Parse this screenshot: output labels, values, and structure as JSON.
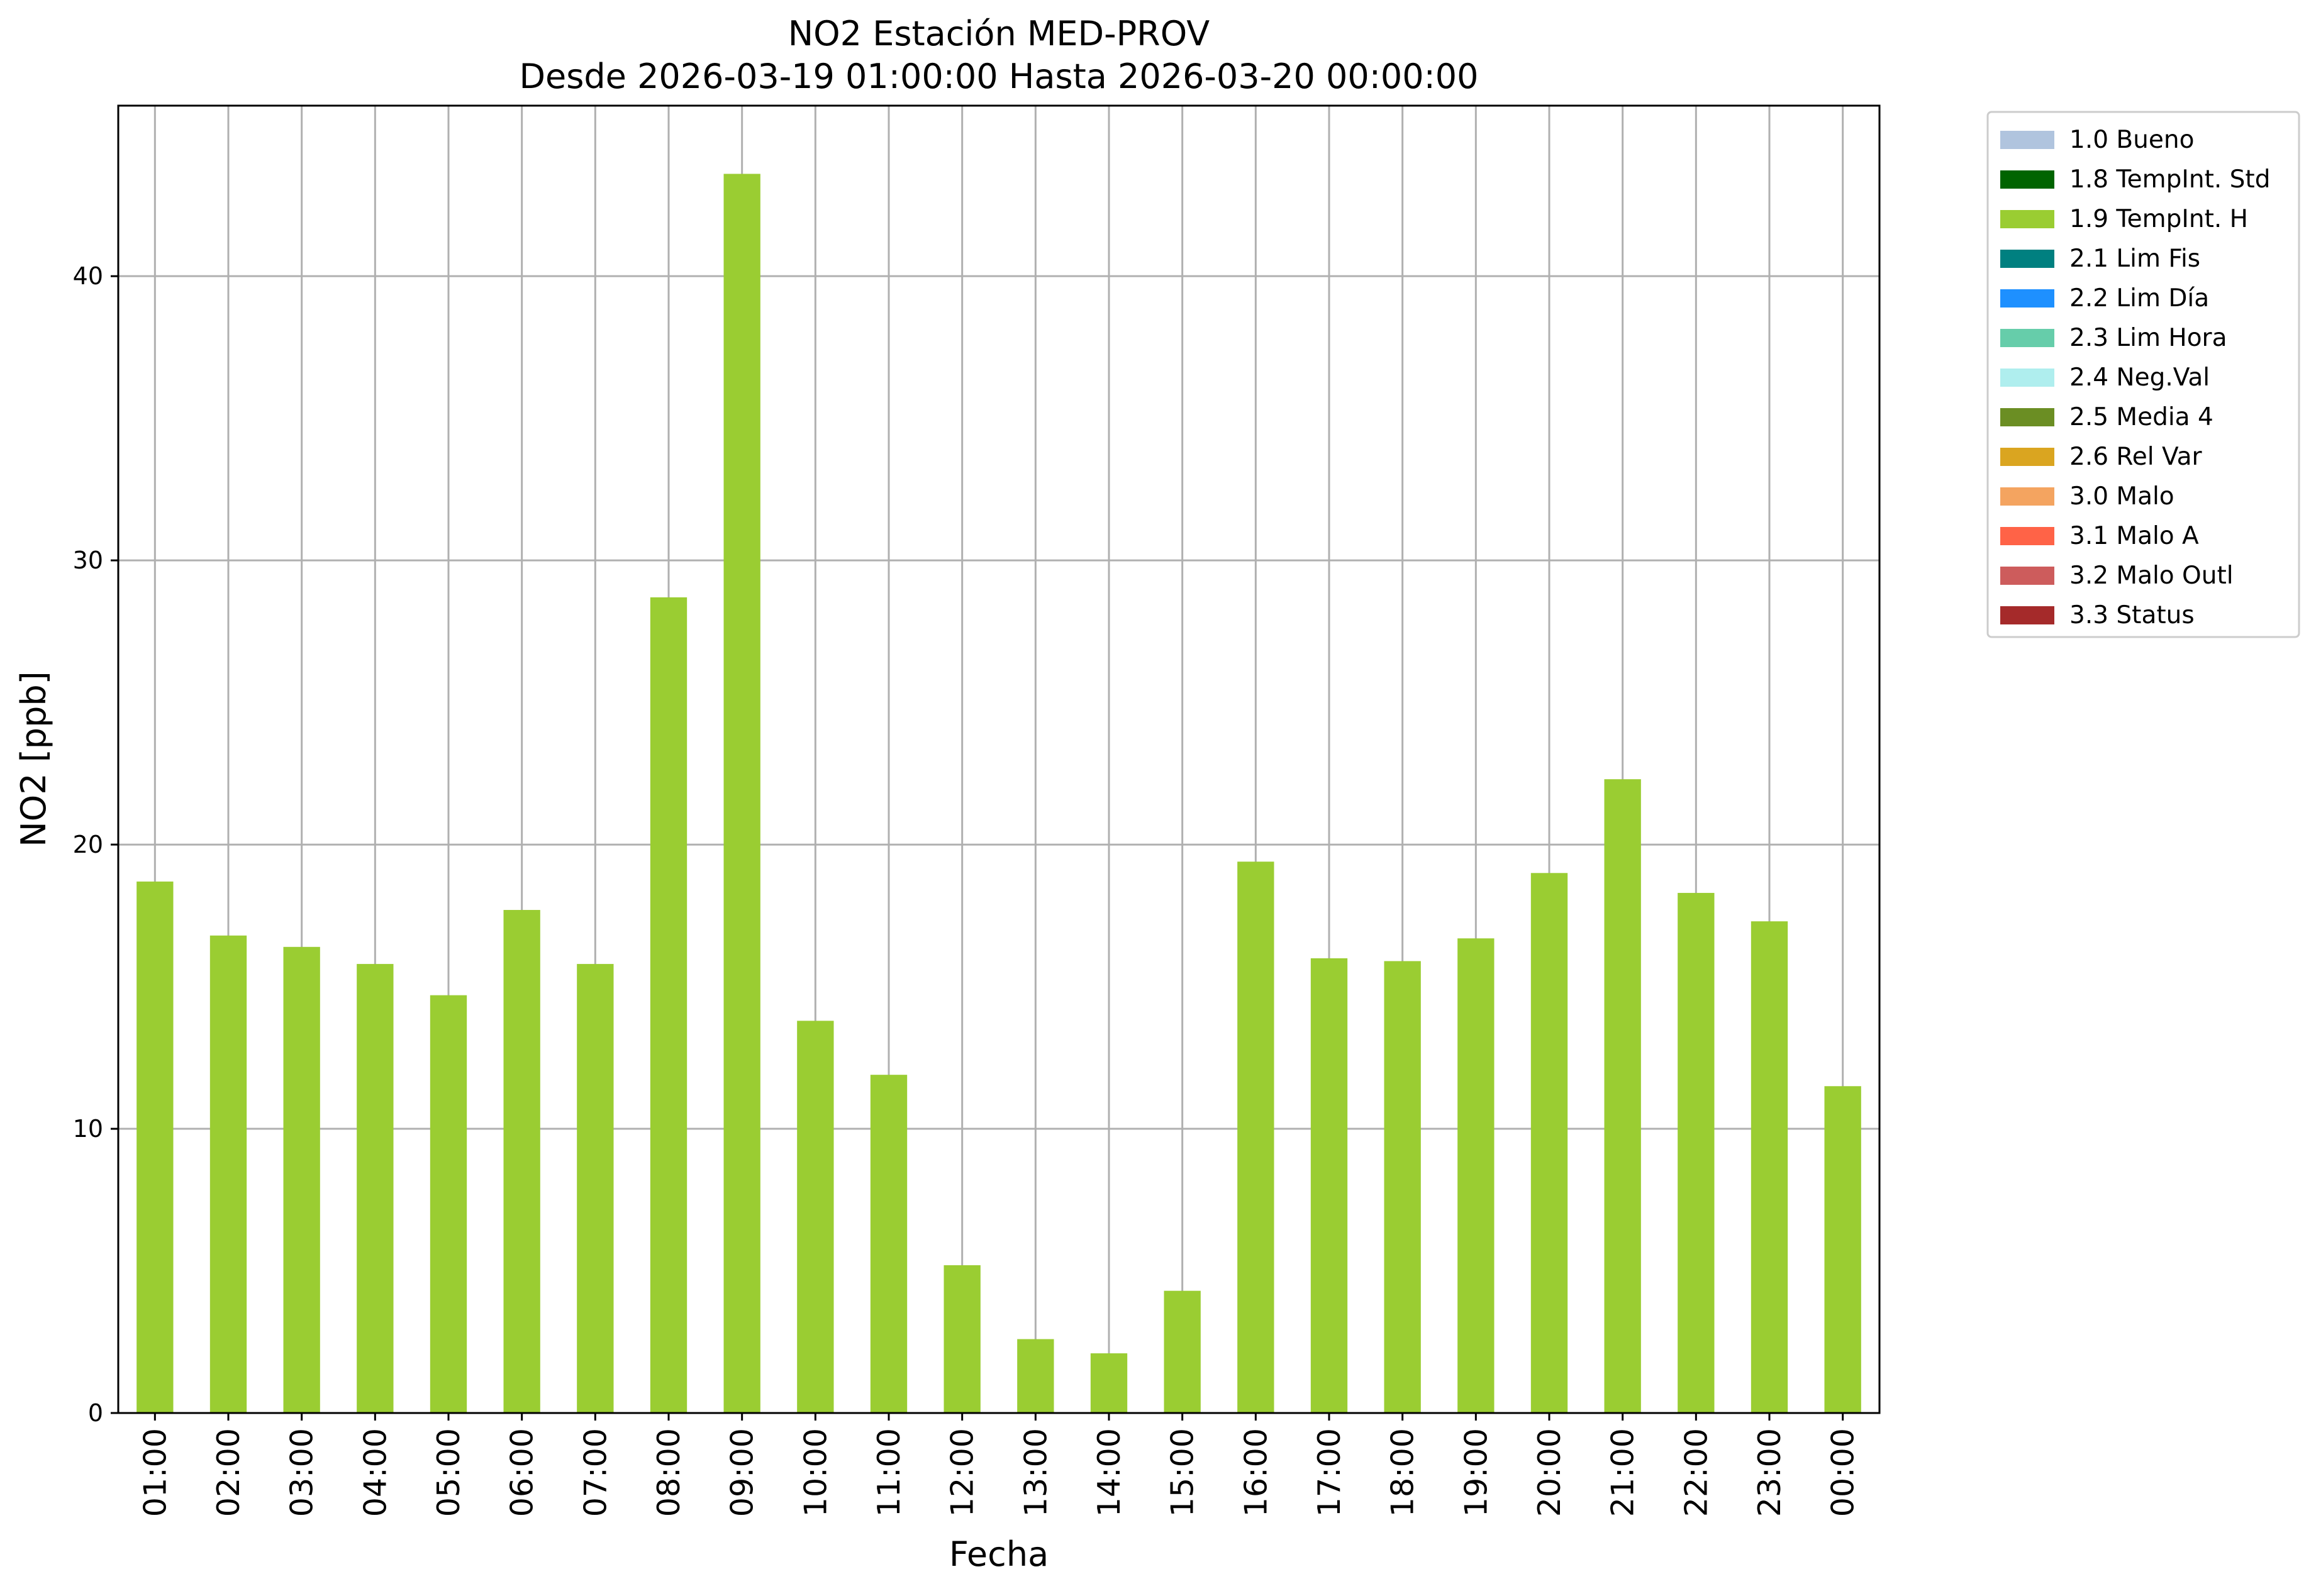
{
  "chart_data": {
    "type": "bar",
    "title": "NO2 Estación MED-PROV",
    "subtitle": "Desde 2026-03-19 01:00:00 Hasta 2026-03-20 00:00:00",
    "xlabel": "Fecha",
    "ylabel": "NO2 [ppb]",
    "ylim": [
      0,
      46
    ],
    "yticks": [
      0,
      10,
      20,
      30,
      40
    ],
    "grid": true,
    "legend_position": "outside-top-right",
    "categories": [
      "01:00",
      "02:00",
      "03:00",
      "04:00",
      "05:00",
      "06:00",
      "07:00",
      "08:00",
      "09:00",
      "10:00",
      "11:00",
      "12:00",
      "13:00",
      "14:00",
      "15:00",
      "16:00",
      "17:00",
      "18:00",
      "19:00",
      "20:00",
      "21:00",
      "22:00",
      "23:00",
      "00:00"
    ],
    "series": [
      {
        "name": "1.9 TempInt. H",
        "color": "#9ACD32",
        "values": [
          18.7,
          16.8,
          16.4,
          15.8,
          14.7,
          17.7,
          15.8,
          28.7,
          43.6,
          13.8,
          11.9,
          5.2,
          2.6,
          2.1,
          4.3,
          19.4,
          16.0,
          15.9,
          16.7,
          19.0,
          22.3,
          18.3,
          17.3,
          11.5
        ]
      }
    ],
    "legend": [
      {
        "label": "1.0 Bueno",
        "color": "#B0C4DE"
      },
      {
        "label": "1.8 TempInt. Std",
        "color": "#006400"
      },
      {
        "label": "1.9 TempInt. H",
        "color": "#9ACD32"
      },
      {
        "label": "2.1 Lim Fis",
        "color": "#008080"
      },
      {
        "label": "2.2 Lim Día",
        "color": "#1E90FF"
      },
      {
        "label": "2.3 Lim Hora",
        "color": "#66CDAA"
      },
      {
        "label": "2.4 Neg.Val",
        "color": "#AFEEEE"
      },
      {
        "label": "2.5 Media 4",
        "color": "#6B8E23"
      },
      {
        "label": "2.6 Rel Var",
        "color": "#DAA520"
      },
      {
        "label": "3.0 Malo",
        "color": "#F4A460"
      },
      {
        "label": "3.1 Malo A",
        "color": "#FF6347"
      },
      {
        "label": "3.2 Malo Outl",
        "color": "#CD5C5C"
      },
      {
        "label": "3.3 Status",
        "color": "#A52A2A"
      }
    ]
  }
}
